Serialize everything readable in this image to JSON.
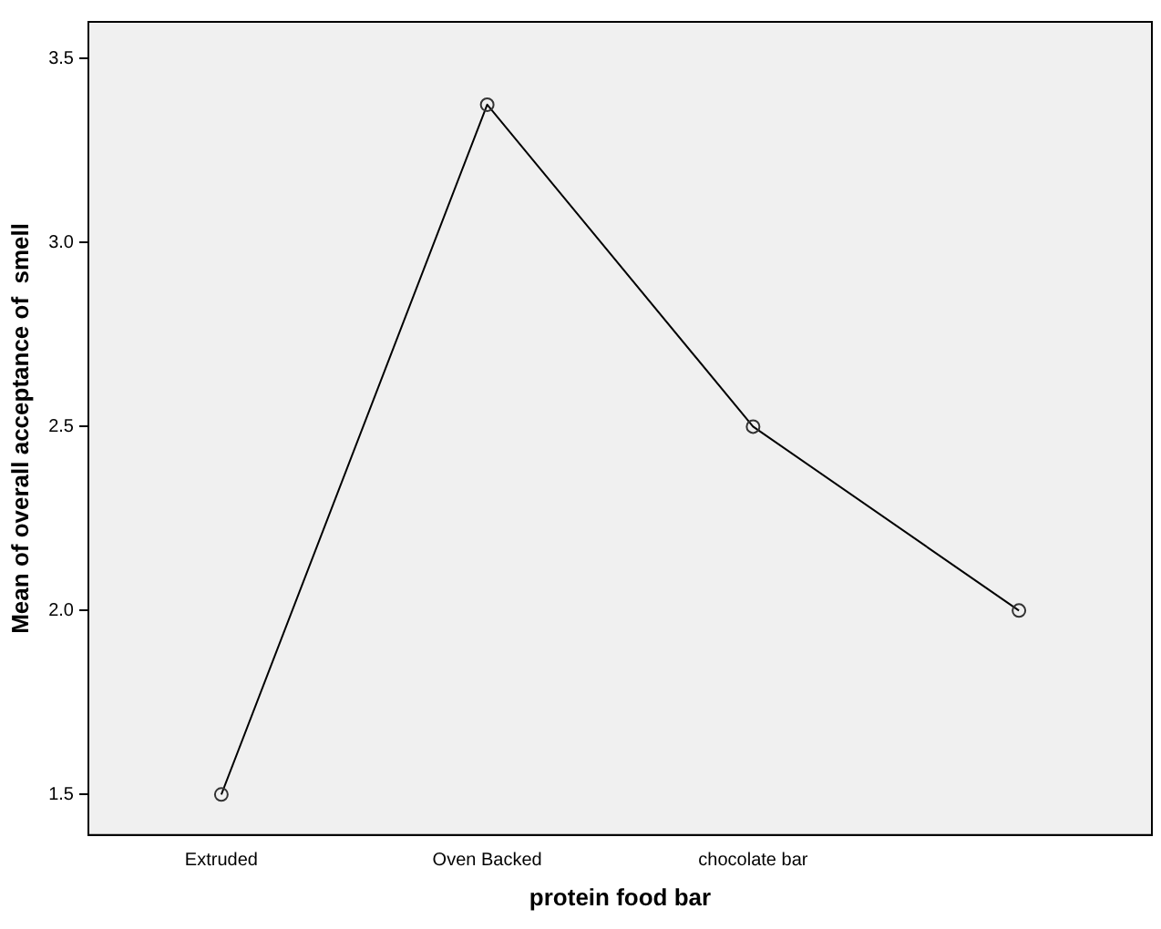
{
  "chart_data": {
    "type": "line",
    "xlabel": "protein food bar",
    "ylabel": "Mean of overall acceptance of  smell",
    "categories": [
      "Extruded",
      "Oven Backed",
      "chocolate bar",
      null
    ],
    "series": [
      {
        "color": "#000000",
        "values": [
          1.5,
          3.375,
          2.5,
          2.0
        ]
      }
    ],
    "ylim": [
      1.39,
      3.6
    ],
    "yticks": [
      1.5,
      {
        "value": 2,
        "label": "2.0"
      },
      2.5,
      {
        "value": 3,
        "label": "3.0"
      },
      3.5
    ],
    "grid": false,
    "legend": false,
    "marker": "circle",
    "line_style": "solid"
  }
}
